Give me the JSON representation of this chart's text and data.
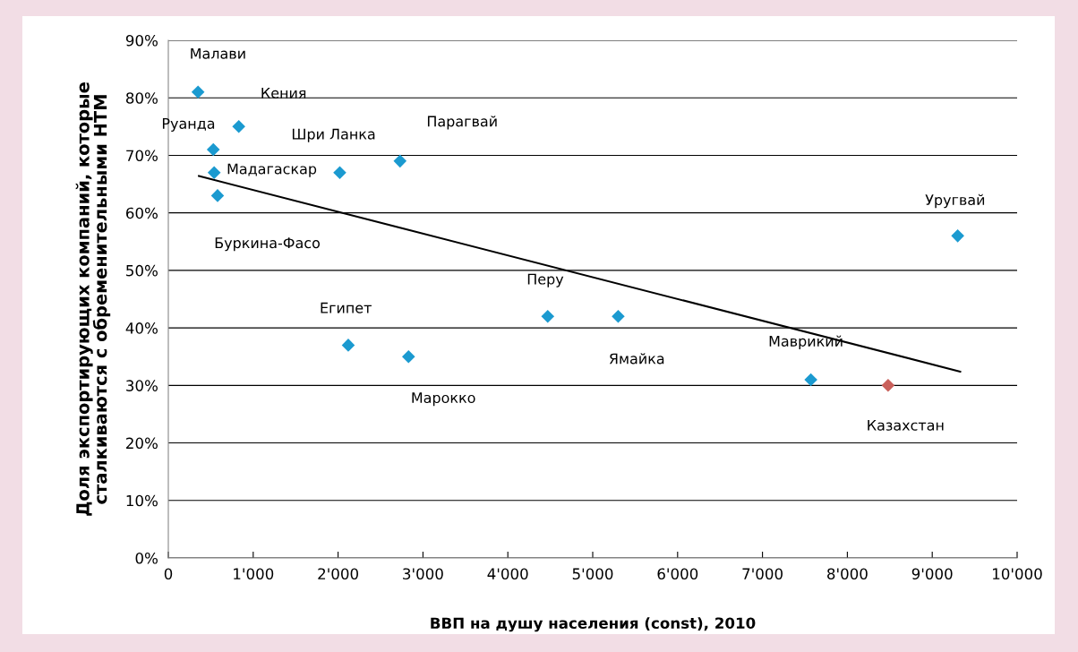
{
  "chart_data": {
    "type": "scatter",
    "xlabel": "ВВП на душу населения (const), 2010",
    "ylabel": "Доля экспортирующих компаний, которые\nсталкиваются с обременительными НТМ",
    "grid": "y",
    "legend": false,
    "series": [
      {
        "marker": "diamond",
        "color": "#1b9ad0",
        "x": [
          350,
          830,
          530,
          540,
          580,
          2020,
          2730,
          9300,
          4470,
          5300,
          2120,
          2830,
          7570
        ],
        "values": [
          81,
          75,
          71,
          67,
          63,
          67,
          69,
          56,
          42,
          42,
          37,
          35,
          31
        ]
      },
      {
        "marker": "diamond",
        "color": "#c9605b",
        "x": [
          8480
        ],
        "values": [
          30
        ]
      },
      {
        "type": "line",
        "marker": "none",
        "color": "#000000",
        "x": [
          360,
          9330
        ],
        "values": [
          66.4,
          32.4
        ]
      }
    ],
    "annotations": [
      {
        "text": "Малави",
        "x": 350,
        "y": 81
      },
      {
        "text": "Кения",
        "x": 830,
        "y": 75
      },
      {
        "text": "Руанда",
        "x": 530,
        "y": 71
      },
      {
        "text": "Мадагаскар",
        "x": 540,
        "y": 67
      },
      {
        "text": "Буркина-Фасо",
        "x": 580,
        "y": 63
      },
      {
        "text": "Шри Ланка",
        "x": 2020,
        "y": 67
      },
      {
        "text": "Парагвай",
        "x": 2730,
        "y": 69
      },
      {
        "text": "Уругвай",
        "x": 9300,
        "y": 56
      },
      {
        "text": "Перу",
        "x": 4470,
        "y": 42
      },
      {
        "text": "Ямайка",
        "x": 5300,
        "y": 42
      },
      {
        "text": "Египет",
        "x": 2120,
        "y": 37
      },
      {
        "text": "Марокко",
        "x": 2830,
        "y": 35
      },
      {
        "text": "Маврикий",
        "x": 7570,
        "y": 31
      },
      {
        "text": "Казахстан",
        "x": 8480,
        "y": 30
      }
    ],
    "xlim": [
      0,
      10000
    ],
    "xticks": [
      0,
      {
        "value": 1000,
        "label": "1'000"
      },
      {
        "value": 2000,
        "label": "2'000"
      },
      {
        "value": 3000,
        "label": "3'000"
      },
      {
        "value": 4000,
        "label": "4'000"
      },
      {
        "value": 5000,
        "label": "5'000"
      },
      {
        "value": 6000,
        "label": "6'000"
      },
      {
        "value": 7000,
        "label": "7'000"
      },
      {
        "value": 8000,
        "label": "8'000"
      },
      {
        "value": 9000,
        "label": "9'000"
      },
      {
        "value": 10000,
        "label": "10'000"
      }
    ],
    "ylim": [
      0,
      90
    ],
    "yticks": [
      {
        "value": 0,
        "label": "0%"
      },
      {
        "value": 10,
        "label": "10%"
      },
      {
        "value": 20,
        "label": "20%"
      },
      {
        "value": 30,
        "label": "30%"
      },
      {
        "value": 40,
        "label": "40%"
      },
      {
        "value": 50,
        "label": "50%"
      },
      {
        "value": 60,
        "label": "60%"
      },
      {
        "value": 70,
        "label": "70%"
      },
      {
        "value": 80,
        "label": "80%"
      },
      {
        "value": 90,
        "label": "90%"
      }
    ]
  }
}
